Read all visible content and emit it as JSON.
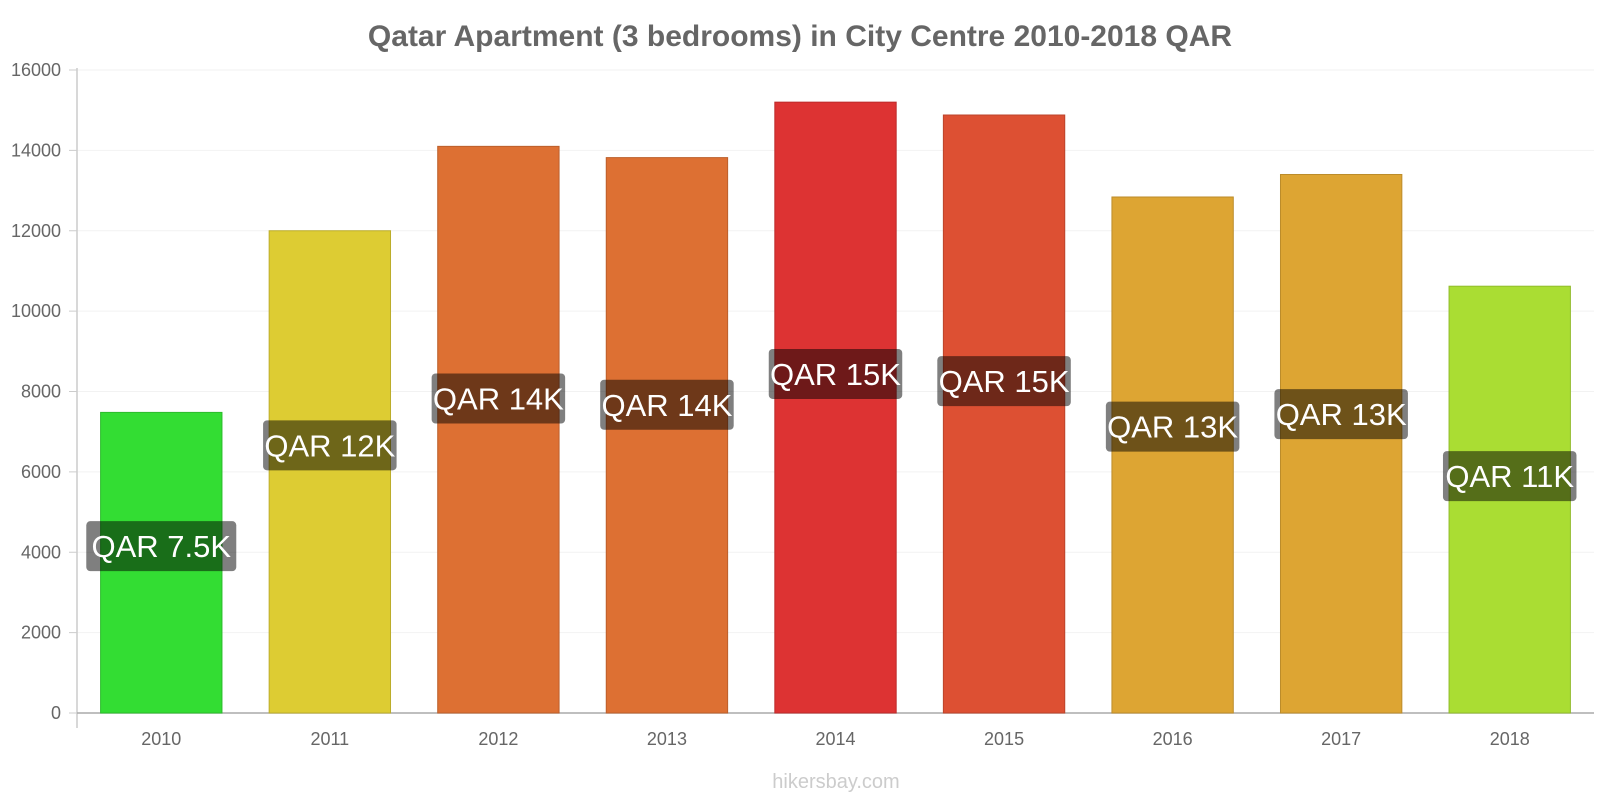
{
  "chart_data": {
    "type": "bar",
    "title": "Qatar Apartment (3 bedrooms) in City Centre 2010-2018 QAR",
    "categories": [
      "2010",
      "2011",
      "2012",
      "2013",
      "2014",
      "2015",
      "2016",
      "2017",
      "2018"
    ],
    "values": [
      7480,
      12000,
      14100,
      13820,
      15200,
      14880,
      12840,
      13400,
      10620
    ],
    "data_labels": [
      "QAR 7.5K",
      "QAR 12K",
      "QAR 14K",
      "QAR 14K",
      "QAR 15K",
      "QAR 15K",
      "QAR 13K",
      "QAR 13K",
      "QAR 11K"
    ],
    "colors": [
      "#33dd33",
      "#ddcc33",
      "#dd7033",
      "#dd7033",
      "#dd3333",
      "#dd5033",
      "#dda533",
      "#dda533",
      "#aadd33"
    ],
    "y_ticks": [
      "0",
      "2000",
      "4000",
      "6000",
      "8000",
      "10000",
      "12000",
      "14000",
      "16000"
    ],
    "ylim": [
      0,
      16000
    ],
    "xlabel": "",
    "ylabel": "",
    "grid": true,
    "legend": "none"
  },
  "watermark": "hikersbay.com"
}
